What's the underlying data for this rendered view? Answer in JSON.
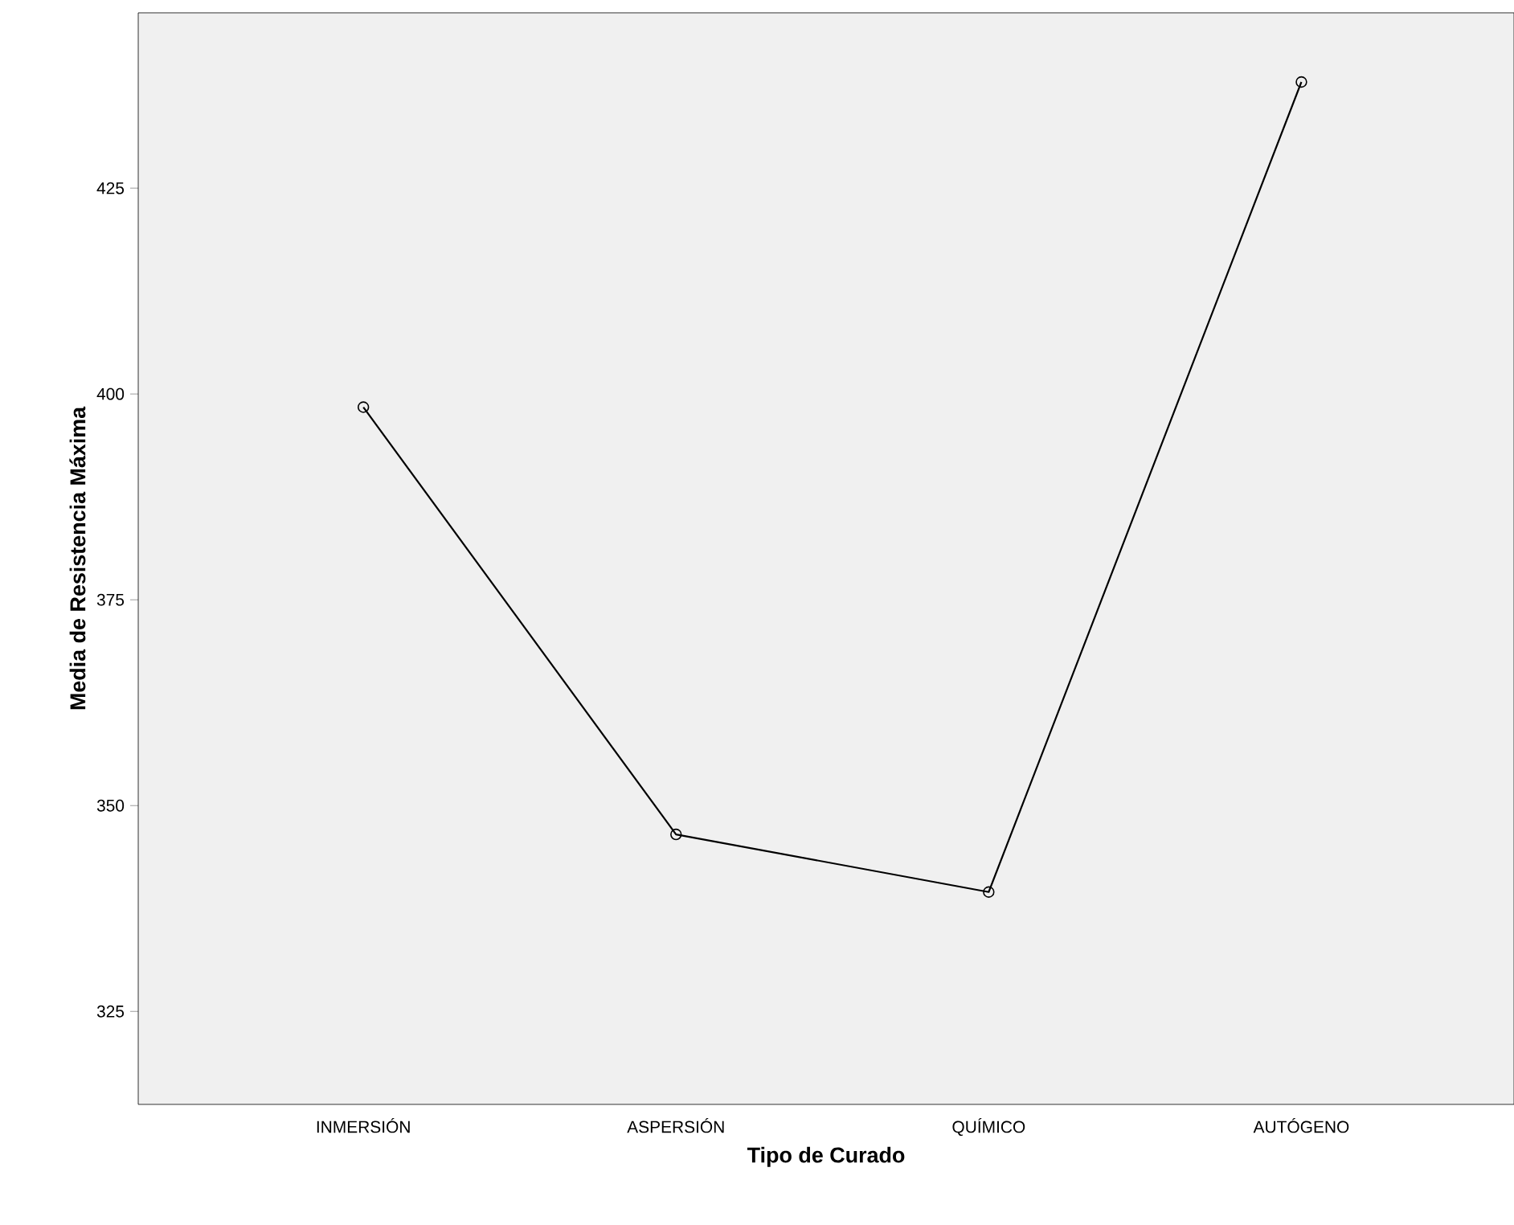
{
  "chart_data": {
    "type": "line",
    "xlabel": "Tipo de Curado",
    "ylabel": "Media de Resistencia Máxima",
    "categories": [
      "INMERSIÓN",
      "ASPERSIÓN",
      "QUÍMICO",
      "AUTÓGENO"
    ],
    "values": [
      398.4,
      346.5,
      339.5,
      437.9
    ],
    "color": "#000000",
    "marker": "circle",
    "line_style": "solid",
    "ylim": [
      313.7,
      446.3
    ],
    "yticks": [
      325,
      350,
      375,
      400,
      425
    ],
    "grid": false
  }
}
